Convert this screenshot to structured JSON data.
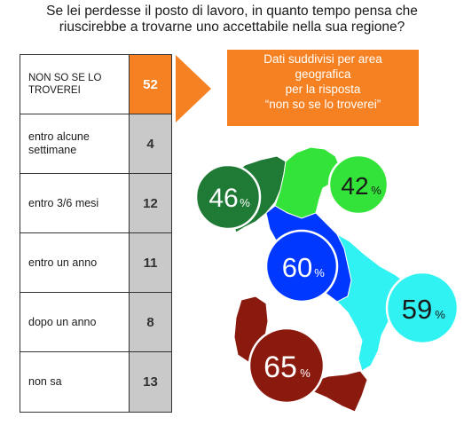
{
  "title": {
    "line1": "Se lei perdesse il posto di lavoro, in quanto tempo pensa che",
    "line2": "riuscirebbe a trovarne uno accettabile nella sua regione?"
  },
  "table": {
    "rows": [
      {
        "label_lines": [
          "NON SO SE LO",
          "TROVEREI"
        ],
        "value": "52",
        "highlight": true
      },
      {
        "label_lines": [
          "entro alcune",
          "settimane"
        ],
        "value": "4",
        "highlight": false
      },
      {
        "label_lines": [
          "entro 3/6 mesi"
        ],
        "value": "12",
        "highlight": false
      },
      {
        "label_lines": [
          "entro un anno"
        ],
        "value": "11",
        "highlight": false
      },
      {
        "label_lines": [
          "dopo un anno"
        ],
        "value": "8",
        "highlight": false
      },
      {
        "label_lines": [
          "non sa"
        ],
        "value": "13",
        "highlight": false
      }
    ]
  },
  "callout": {
    "lines": [
      "Dati suddivisi per area",
      "geografica",
      "per la risposta",
      "“non so se lo troverei”"
    ]
  },
  "chart_data": {
    "type": "table",
    "categories": [
      "NON SO SE LO TROVEREI",
      "entro alcune settimane",
      "entro 3/6 mesi",
      "entro un anno",
      "dopo un anno",
      "non sa"
    ],
    "values": [
      52,
      4,
      12,
      11,
      8,
      13
    ],
    "regions": [
      {
        "value": 46,
        "unit": "%",
        "color": "#1f7a35"
      },
      {
        "value": 42,
        "unit": "%",
        "color": "#33e33a"
      },
      {
        "value": 60,
        "unit": "%",
        "color": "#0038ff"
      },
      {
        "value": 59,
        "unit": "%",
        "color": "#30f2f2"
      },
      {
        "value": 65,
        "unit": "%",
        "color": "#8b1a0e"
      }
    ]
  },
  "colors": {
    "highlight": "#f68122",
    "value_cell": "#c9c9c9",
    "nw_green": "#1f7a35",
    "ne_green": "#33e33a",
    "center_blue": "#0038ff",
    "south_cyan": "#30f2f2",
    "islands_red": "#8b1a0e"
  }
}
